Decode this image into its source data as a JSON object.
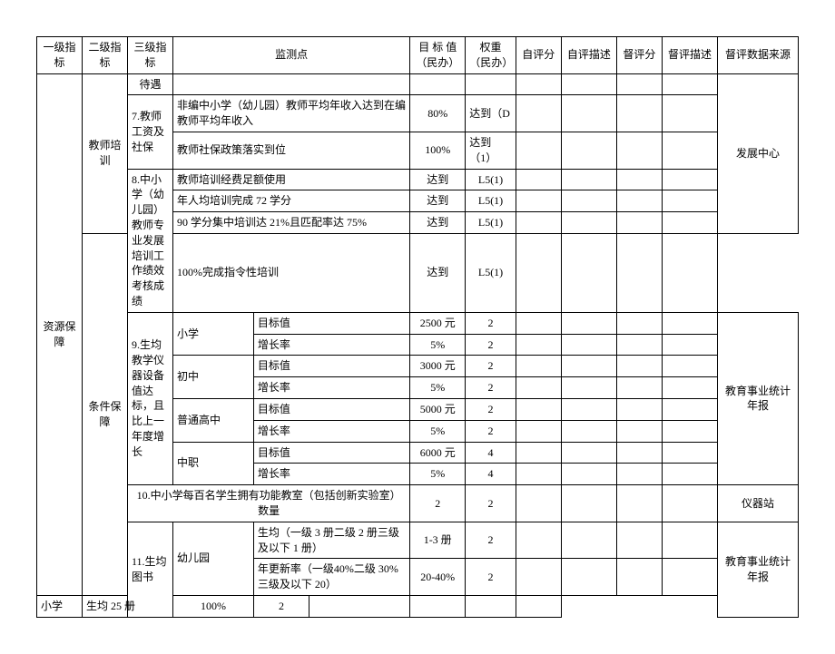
{
  "headers": {
    "h1": "一级指标",
    "h2": "二级指标",
    "h3": "三级指标",
    "h4": "监测点",
    "h5": "目 标 值（民办）",
    "h6": "权重（民办）",
    "h7": "自评分",
    "h8": "自评描述",
    "h9": "督评分",
    "h10": "督评描述",
    "h11": "督评数据来源"
  },
  "l1": {
    "a": "资源保障"
  },
  "l2": {
    "a": "教师培训",
    "b": "条件保障"
  },
  "l3": {
    "a": "待遇",
    "b": "7.教师工资及社保",
    "c": "8.中小学（幼儿园）教师专业发展培训工作绩效考核成绩",
    "d": "9.生均教学仪器设备值达标，且比上一年度增长",
    "e": "10.中小学每百名学生拥有功能教室（包括创新实验室）数量",
    "f": "11.生均图书"
  },
  "r1": {
    "mp": "非编中小学（幼儿园）教师平均年收入达到在编教师平均年收入",
    "tv": "80%",
    "wt": "达到（D"
  },
  "r2": {
    "mp": "教师社保政策落实到位",
    "tv": "100%",
    "wt": "达到（1）"
  },
  "r3": {
    "mp": "教师培训经费足额使用",
    "tv": "达到",
    "wt": "L5(1)"
  },
  "r4": {
    "mp": "年人均培训完成 72 学分",
    "tv": "达到",
    "wt": "L5(1)"
  },
  "r5": {
    "mp": "90 学分集中培训达 21%且匹配率达 75%",
    "tv": "达到",
    "wt": "L5(1)"
  },
  "r6": {
    "mp": "100%完成指令性培训",
    "tv": "达到",
    "wt": "L5(1)"
  },
  "stage": {
    "a": "小学",
    "b": "初中",
    "c": "普通高中",
    "d": "中职"
  },
  "metric": {
    "a": "目标值",
    "b": "增长率"
  },
  "r7": {
    "tv": "2500 元",
    "wt": "2"
  },
  "r8": {
    "tv": "5%",
    "wt": "2"
  },
  "r9": {
    "tv": "3000 元",
    "wt": "2"
  },
  "r10": {
    "tv": "5%",
    "wt": "2"
  },
  "r11": {
    "tv": "5000 元",
    "wt": "2"
  },
  "r12": {
    "tv": "5%",
    "wt": "2"
  },
  "r13": {
    "tv": "6000 元",
    "wt": "4"
  },
  "r14": {
    "tv": "5%",
    "wt": "4"
  },
  "r15": {
    "tv": "2",
    "wt": "2"
  },
  "book": {
    "a": "幼儿园",
    "b": "小学"
  },
  "r16": {
    "mp": "生均（一级 3 册二级 2 册三级及以下 1 册）",
    "tv": "1-3 册",
    "wt": "2"
  },
  "r17": {
    "mp": "年更新率（一级40%二级 30%三级及以下 20）",
    "tv": "20-40%",
    "wt": "2"
  },
  "r18": {
    "mp": "生均 25 册",
    "tv": "100%",
    "wt": "2"
  },
  "src": {
    "a": "发展中心",
    "b": "教育事业统计年报",
    "c": "仪器站",
    "d": "教育事业统计年报"
  }
}
